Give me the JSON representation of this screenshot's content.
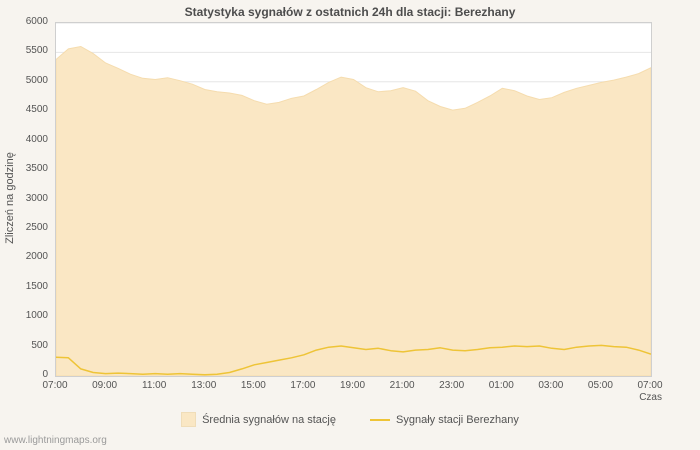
{
  "footer": {
    "watermark": "www.lightningmaps.org"
  },
  "chart_data": {
    "type": "area",
    "title": "Statystyka sygnałów z ostatnich 24h dla stacji: Berezhany",
    "xlabel": "Czas",
    "ylabel": "Zliczeń na godzinę",
    "ylim": [
      0,
      6000
    ],
    "grid": "horizontal",
    "legend_position": "bottom-center",
    "colors": {
      "area_fill": "#fae7c4",
      "area_edge": "#f5dcae",
      "line": "#eec437",
      "gridline": "#e6e6e6",
      "plot_background": "#ffffff",
      "page_background": "#f7f4ef",
      "axis_text": "#545454"
    },
    "y_tick_values": [
      0,
      500,
      1000,
      1500,
      2000,
      2500,
      3000,
      3500,
      4000,
      4500,
      5000,
      5500,
      6000
    ],
    "x_tick_labels": [
      "07:00",
      "09:00",
      "11:00",
      "13:00",
      "15:00",
      "17:00",
      "19:00",
      "21:00",
      "23:00",
      "01:00",
      "03:00",
      "05:00",
      "07:00"
    ],
    "x_hours": [
      0,
      0.5,
      1,
      1.5,
      2,
      2.5,
      3,
      3.5,
      4,
      4.5,
      5,
      5.5,
      6,
      6.5,
      7,
      7.5,
      8,
      8.5,
      9,
      9.5,
      10,
      10.5,
      11,
      11.5,
      12,
      12.5,
      13,
      13.5,
      14,
      14.5,
      15,
      15.5,
      16,
      16.5,
      17,
      17.5,
      18,
      18.5,
      19,
      19.5,
      20,
      20.5,
      21,
      21.5,
      22,
      22.5,
      23,
      23.5,
      24
    ],
    "series": [
      {
        "name": "Średnia sygnałów na stację",
        "type": "area",
        "values": [
          5380,
          5560,
          5600,
          5480,
          5320,
          5230,
          5130,
          5060,
          5040,
          5070,
          5020,
          4960,
          4870,
          4830,
          4810,
          4770,
          4680,
          4620,
          4650,
          4720,
          4760,
          4870,
          4990,
          5080,
          5040,
          4900,
          4830,
          4850,
          4900,
          4840,
          4680,
          4580,
          4520,
          4550,
          4650,
          4760,
          4890,
          4850,
          4760,
          4700,
          4730,
          4820,
          4890,
          4940,
          4990,
          5030,
          5080,
          5140,
          5240
        ]
      },
      {
        "name": "Sygnały stacji Berezhany",
        "type": "line",
        "values": [
          320,
          310,
          120,
          60,
          40,
          50,
          40,
          30,
          40,
          30,
          40,
          30,
          20,
          30,
          60,
          120,
          190,
          230,
          270,
          310,
          360,
          440,
          490,
          510,
          480,
          450,
          470,
          430,
          410,
          440,
          450,
          480,
          440,
          430,
          450,
          480,
          490,
          510,
          500,
          510,
          470,
          450,
          490,
          510,
          520,
          500,
          490,
          440,
          370
        ]
      }
    ]
  }
}
